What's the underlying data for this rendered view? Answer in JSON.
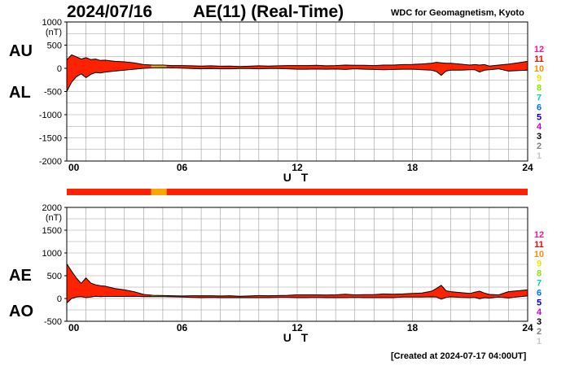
{
  "header": {
    "date": "2024/07/16",
    "title": "AE(11) (Real-Time)",
    "org": "WDC for Geomagnetism, Kyoto",
    "created": "[Created at 2024-07-17 04:00UT]"
  },
  "legend": {
    "numbers": [
      "12",
      "11",
      "10",
      "9",
      "8",
      "7",
      "6",
      "5",
      "4",
      "3",
      "2",
      "1"
    ],
    "colors": [
      "#ff1493",
      "#ff0000",
      "#ff8c00",
      "#e8e800",
      "#88e800",
      "#00cccc",
      "#0070ff",
      "#0000cc",
      "#cc00cc",
      "#000000",
      "#808080",
      "#c8c8c8"
    ]
  },
  "station_bar": {
    "segments": [
      {
        "from": 0,
        "to": 4.4,
        "stations": 11,
        "color": "#ff2200"
      },
      {
        "from": 4.4,
        "to": 5.2,
        "stations": 10,
        "color": "#ffa500"
      },
      {
        "from": 5.2,
        "to": 24,
        "stations": 11,
        "color": "#ff2200"
      }
    ]
  },
  "chart_data": [
    {
      "type": "area",
      "name": "AU-AL",
      "series_labels": [
        "AU",
        "AL"
      ],
      "xlabel": "U T",
      "unit": "(nT)",
      "ylim": [
        -2000,
        1000
      ],
      "yticks": [
        1000,
        500,
        0,
        -500,
        -1000,
        -1500,
        -2000
      ],
      "xticks": [
        "00",
        "06",
        "12",
        "18",
        "24"
      ],
      "xlim": [
        0,
        24
      ],
      "fill_color": "#ff2200",
      "highlight": {
        "from": 4.4,
        "to": 5.2,
        "color": "#ffa500"
      },
      "x": [
        0,
        0.25,
        0.5,
        0.75,
        1,
        1.25,
        1.5,
        1.75,
        2,
        2.5,
        3,
        3.5,
        4,
        4.5,
        5,
        5.5,
        6,
        6.5,
        7,
        7.5,
        8,
        8.5,
        9,
        9.5,
        10,
        10.5,
        11,
        11.5,
        12,
        12.5,
        13,
        13.5,
        14,
        14.5,
        15,
        15.5,
        16,
        16.5,
        17,
        17.5,
        18,
        18.5,
        19,
        19.25,
        19.5,
        19.75,
        20,
        20.5,
        21,
        21.25,
        21.5,
        21.75,
        22,
        22.5,
        23,
        23.5,
        24
      ],
      "AU": [
        180,
        290,
        250,
        200,
        230,
        190,
        200,
        170,
        175,
        150,
        140,
        120,
        80,
        70,
        70,
        60,
        60,
        55,
        50,
        55,
        45,
        50,
        40,
        45,
        55,
        50,
        55,
        60,
        60,
        60,
        65,
        55,
        60,
        70,
        65,
        65,
        60,
        70,
        70,
        80,
        85,
        95,
        110,
        130,
        120,
        110,
        110,
        90,
        70,
        80,
        70,
        80,
        50,
        70,
        90,
        120,
        150
      ],
      "AL": [
        -500,
        -300,
        -180,
        -120,
        -200,
        -130,
        -90,
        -100,
        -80,
        -60,
        -40,
        -20,
        0,
        10,
        15,
        10,
        5,
        -5,
        -10,
        -5,
        -10,
        -10,
        -5,
        -5,
        -10,
        -5,
        -5,
        -10,
        -20,
        -20,
        -15,
        -20,
        -15,
        -25,
        -10,
        -20,
        -25,
        -30,
        -25,
        -20,
        -20,
        -30,
        -40,
        -70,
        -150,
        -60,
        -40,
        -40,
        -30,
        -30,
        -80,
        -40,
        -30,
        -10,
        -60,
        -50,
        -40
      ]
    },
    {
      "type": "area",
      "name": "AE-AO",
      "series_labels": [
        "AE",
        "AO"
      ],
      "xlabel": "U T",
      "unit": "(nT)",
      "ylim": [
        -500,
        2000
      ],
      "yticks": [
        2000,
        1500,
        1000,
        500,
        0,
        -500
      ],
      "xticks": [
        "00",
        "06",
        "12",
        "18",
        "24"
      ],
      "xlim": [
        0,
        24
      ],
      "fill_color": "#ff2200",
      "highlight": {
        "from": 4.4,
        "to": 5.2,
        "color": "#ffa500"
      },
      "x": [
        0,
        0.25,
        0.5,
        0.75,
        1,
        1.25,
        1.5,
        1.75,
        2,
        2.5,
        3,
        3.5,
        4,
        4.5,
        5,
        5.5,
        6,
        6.5,
        7,
        7.5,
        8,
        8.5,
        9,
        9.5,
        10,
        10.5,
        11,
        11.5,
        12,
        12.5,
        13,
        13.5,
        14,
        14.5,
        15,
        15.5,
        16,
        16.5,
        17,
        17.5,
        18,
        18.5,
        19,
        19.25,
        19.5,
        19.75,
        20,
        20.5,
        21,
        21.25,
        21.5,
        21.75,
        22,
        22.5,
        23,
        23.5,
        24
      ],
      "AE": [
        760,
        600,
        450,
        330,
        450,
        340,
        300,
        280,
        270,
        220,
        190,
        150,
        90,
        70,
        65,
        60,
        55,
        60,
        60,
        60,
        55,
        60,
        50,
        55,
        65,
        60,
        65,
        70,
        80,
        80,
        80,
        75,
        80,
        95,
        80,
        85,
        85,
        100,
        95,
        100,
        110,
        120,
        160,
        220,
        290,
        170,
        150,
        130,
        110,
        140,
        160,
        120,
        90,
        80,
        150,
        170,
        190
      ],
      "AO": [
        -100,
        0,
        30,
        40,
        20,
        30,
        50,
        40,
        45,
        45,
        45,
        50,
        40,
        40,
        40,
        35,
        30,
        25,
        20,
        25,
        20,
        20,
        20,
        20,
        20,
        20,
        25,
        25,
        20,
        20,
        25,
        20,
        20,
        20,
        25,
        20,
        20,
        20,
        20,
        30,
        30,
        30,
        35,
        30,
        -15,
        25,
        35,
        25,
        20,
        25,
        -5,
        20,
        10,
        30,
        15,
        35,
        55
      ]
    }
  ]
}
